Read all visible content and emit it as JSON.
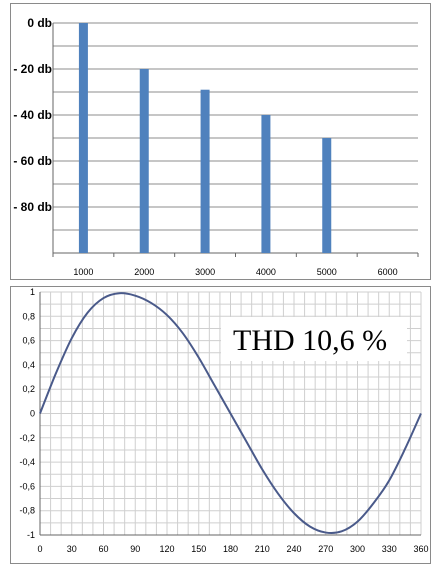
{
  "chart_data": [
    {
      "type": "bar",
      "title": "",
      "xlabel": "",
      "ylabel": "",
      "categories": [
        "1000",
        "2000",
        "3000",
        "4000",
        "5000",
        "6000"
      ],
      "values": [
        0,
        -20,
        -29,
        -40,
        -50,
        null
      ],
      "ylim": [
        -100,
        0
      ],
      "yticks": [
        {
          "value": 0,
          "label": "0 db"
        },
        {
          "value": -20,
          "label": "- 20 db"
        },
        {
          "value": -40,
          "label": "- 40 db"
        },
        {
          "value": -60,
          "label": "- 60 db"
        },
        {
          "value": -80,
          "label": "- 80 db"
        }
      ],
      "grid": true,
      "bar_color": "#4f81bd"
    },
    {
      "type": "line",
      "title": "",
      "xlabel": "",
      "ylabel": "",
      "xlim": [
        0,
        360
      ],
      "ylim": [
        -1,
        1
      ],
      "xticks": [
        "0",
        "30",
        "60",
        "90",
        "120",
        "150",
        "180",
        "210",
        "240",
        "270",
        "300",
        "330",
        "360"
      ],
      "yticks": [
        "1",
        "0,8",
        "0,6",
        "0,4",
        "0,2",
        "0",
        "-0,2",
        "-0,4",
        "-0,6",
        "-0,8",
        "-1"
      ],
      "series": [
        {
          "color": "#4a5a8a",
          "x": [
            0,
            15,
            30,
            45,
            60,
            75,
            90,
            105,
            120,
            135,
            150,
            165,
            180,
            195,
            210,
            225,
            240,
            255,
            270,
            285,
            300,
            315,
            330,
            345,
            360
          ],
          "y": [
            0,
            0.33,
            0.62,
            0.83,
            0.95,
            0.99,
            0.97,
            0.91,
            0.81,
            0.66,
            0.46,
            0.23,
            0,
            -0.23,
            -0.46,
            -0.66,
            -0.82,
            -0.93,
            -0.98,
            -0.97,
            -0.89,
            -0.74,
            -0.55,
            -0.29,
            0
          ]
        }
      ],
      "annotation": "THD 10,6 %",
      "grid": true
    }
  ]
}
